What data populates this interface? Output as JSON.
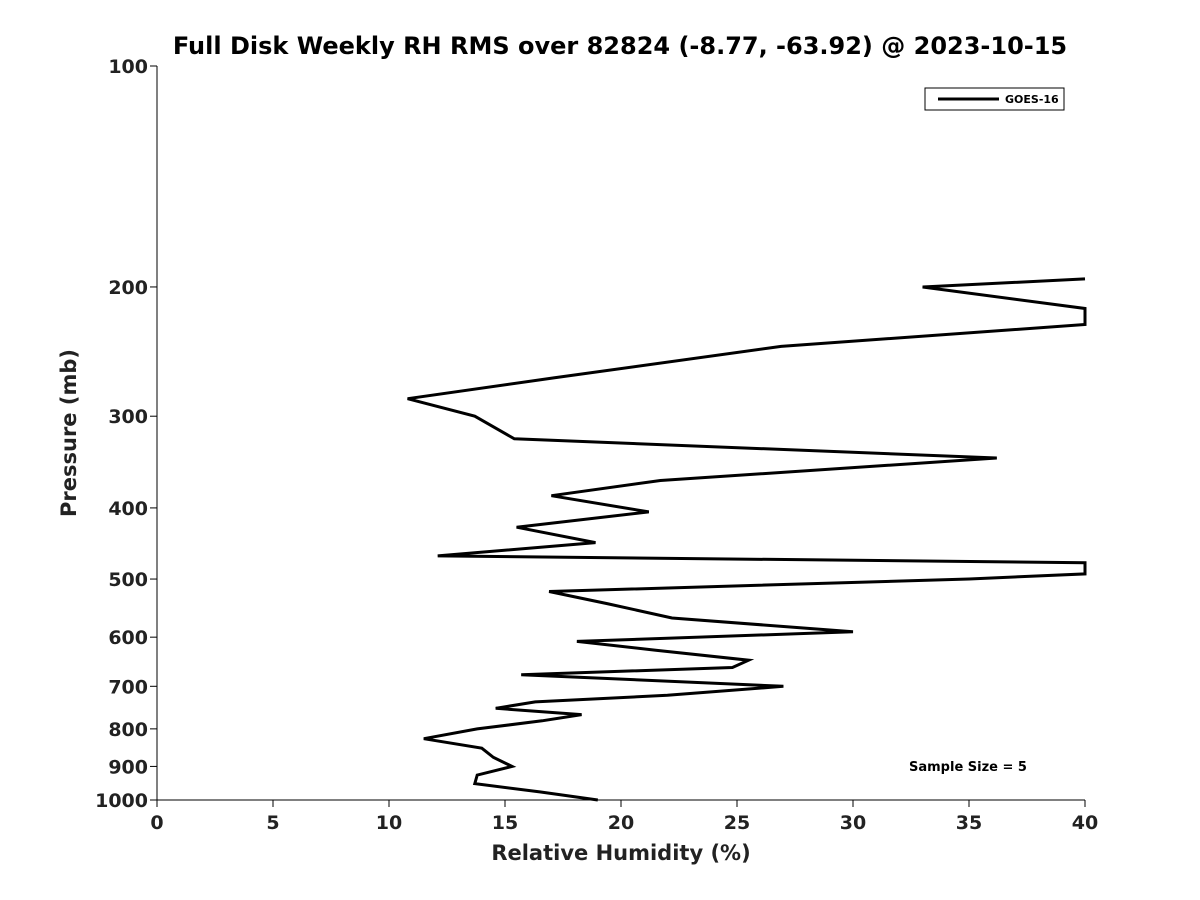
{
  "chart_data": {
    "type": "line",
    "title": "Full Disk Weekly RH RMS over 82824 (-8.77, -63.92) @ 2023-10-15",
    "xlabel": "Relative Humidity (%)",
    "ylabel": "Pressure (mb)",
    "xlim": [
      0,
      40
    ],
    "ylim": [
      100,
      1000
    ],
    "yscale": "log",
    "y_inverted": true,
    "x_ticks": [
      0,
      5,
      10,
      15,
      20,
      25,
      30,
      35,
      40
    ],
    "y_ticks": [
      100,
      200,
      300,
      400,
      500,
      600,
      700,
      800,
      900,
      1000
    ],
    "grid": false,
    "legend_position": "top-right",
    "annotation": "Sample Size = 5",
    "series": [
      {
        "name": "GOES-16",
        "color": "#000000",
        "points": [
          [
            19.0,
            1000
          ],
          [
            16.5,
            975
          ],
          [
            13.7,
            950
          ],
          [
            13.8,
            925
          ],
          [
            15.3,
            900
          ],
          [
            14.5,
            875
          ],
          [
            14.0,
            850
          ],
          [
            11.5,
            825
          ],
          [
            13.8,
            800
          ],
          [
            16.6,
            780
          ],
          [
            18.3,
            765
          ],
          [
            14.6,
            750
          ],
          [
            16.3,
            735
          ],
          [
            22.0,
            720
          ],
          [
            27.0,
            700
          ],
          [
            15.7,
            675
          ],
          [
            24.8,
            660
          ],
          [
            25.5,
            645
          ],
          [
            21.5,
            625
          ],
          [
            18.1,
            608
          ],
          [
            30.0,
            590
          ],
          [
            22.2,
            565
          ],
          [
            19.4,
            540
          ],
          [
            16.9,
            520
          ],
          [
            35.0,
            500
          ],
          [
            40.0,
            492
          ],
          [
            40.0,
            475
          ],
          [
            12.1,
            465
          ],
          [
            18.9,
            446
          ],
          [
            15.5,
            425
          ],
          [
            21.2,
            405
          ],
          [
            17.0,
            385
          ],
          [
            21.7,
            367
          ],
          [
            36.2,
            342
          ],
          [
            15.4,
            322
          ],
          [
            13.7,
            300
          ],
          [
            10.8,
            284
          ],
          [
            17.1,
            266
          ],
          [
            26.9,
            241
          ],
          [
            40.0,
            225
          ],
          [
            40.0,
            214
          ],
          [
            33.0,
            200
          ],
          [
            40.0,
            195
          ]
        ]
      }
    ]
  }
}
